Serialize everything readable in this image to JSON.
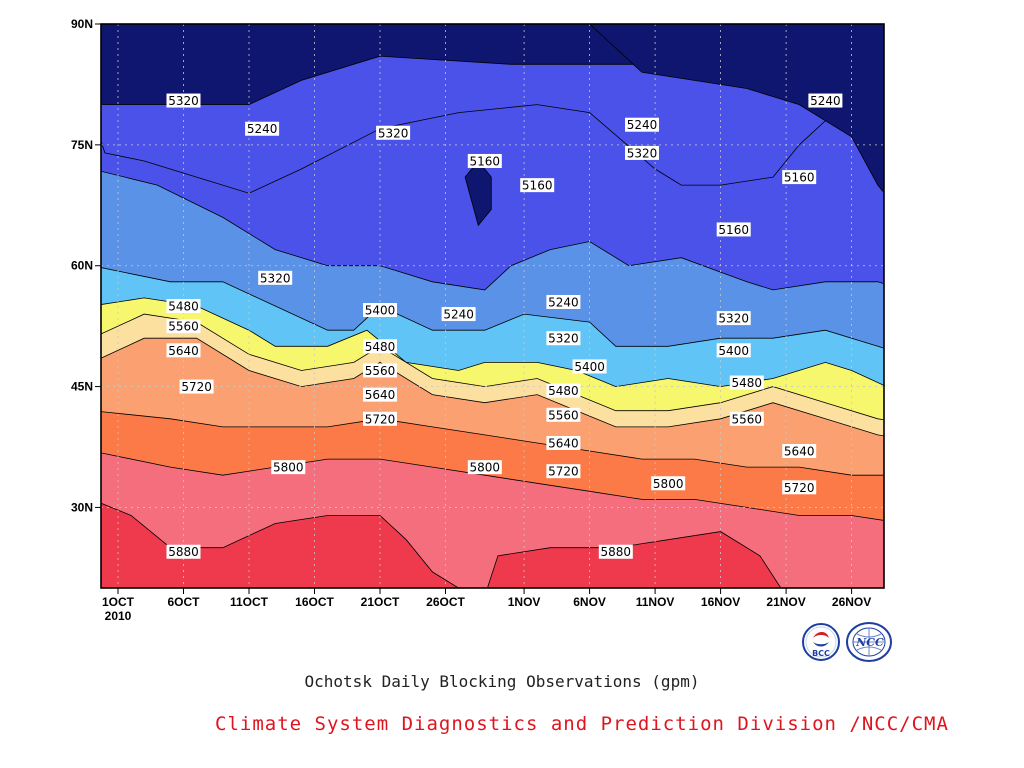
{
  "chart_data": {
    "type": "heatmap",
    "title": "Ochotsk Daily Blocking Observations (gpm)",
    "xlabel": "",
    "ylabel": "",
    "x_ticks": [
      "1OCT",
      "6OCT",
      "11OCT",
      "16OCT",
      "21OCT",
      "26OCT",
      "1NOV",
      "6NOV",
      "11NOV",
      "16NOV",
      "21NOV",
      "26NOV"
    ],
    "x_year_label": "2010",
    "x_range": [
      "2010-10-01",
      "2010-11-29"
    ],
    "y_ticks": [
      "30N",
      "45N",
      "60N",
      "75N",
      "90N"
    ],
    "y_range": [
      20,
      90
    ],
    "grid": true,
    "contour_levels": [
      5160,
      5240,
      5320,
      5400,
      5480,
      5560,
      5640,
      5720,
      5800,
      5880
    ],
    "level_colors": [
      "#0f1670",
      "#1a1de0",
      "#4a52ea",
      "#5a92e8",
      "#60c4f7",
      "#f7f76e",
      "#fbe0a0",
      "#fba070",
      "#fb7a48",
      "#f56e7e",
      "#ef3a4e"
    ],
    "contour_labels": [
      {
        "date": "2010-10-06",
        "lat": 80.5,
        "value": 5320
      },
      {
        "date": "2010-10-12",
        "lat": 77,
        "value": 5240
      },
      {
        "date": "2010-10-22",
        "lat": 76.5,
        "value": 5320
      },
      {
        "date": "2010-10-29",
        "lat": 73,
        "value": 5160
      },
      {
        "date": "2010-11-02",
        "lat": 70,
        "value": 5160
      },
      {
        "date": "2010-11-10",
        "lat": 77.5,
        "value": 5240
      },
      {
        "date": "2010-11-10",
        "lat": 74,
        "value": 5320
      },
      {
        "date": "2010-11-24",
        "lat": 80.5,
        "value": 5240
      },
      {
        "date": "2010-11-22",
        "lat": 71,
        "value": 5160
      },
      {
        "date": "2010-11-17",
        "lat": 64.5,
        "value": 5160
      },
      {
        "date": "2010-10-13",
        "lat": 58.5,
        "value": 5320
      },
      {
        "date": "2010-10-06",
        "lat": 55,
        "value": 5480
      },
      {
        "date": "2010-10-06",
        "lat": 52.5,
        "value": 5560
      },
      {
        "date": "2010-10-06",
        "lat": 49.5,
        "value": 5640
      },
      {
        "date": "2010-10-07",
        "lat": 45,
        "value": 5720
      },
      {
        "date": "2010-10-21",
        "lat": 54.5,
        "value": 5400
      },
      {
        "date": "2010-10-21",
        "lat": 50,
        "value": 5480
      },
      {
        "date": "2010-10-21",
        "lat": 47,
        "value": 5560
      },
      {
        "date": "2010-10-21",
        "lat": 44,
        "value": 5640
      },
      {
        "date": "2010-10-21",
        "lat": 41,
        "value": 5720
      },
      {
        "date": "2010-10-27",
        "lat": 54,
        "value": 5240
      },
      {
        "date": "2010-11-04",
        "lat": 55.5,
        "value": 5240
      },
      {
        "date": "2010-11-04",
        "lat": 51,
        "value": 5320
      },
      {
        "date": "2010-11-06",
        "lat": 47.5,
        "value": 5400
      },
      {
        "date": "2010-11-04",
        "lat": 44.5,
        "value": 5480
      },
      {
        "date": "2010-11-04",
        "lat": 41.5,
        "value": 5560
      },
      {
        "date": "2010-11-04",
        "lat": 38,
        "value": 5640
      },
      {
        "date": "2010-11-04",
        "lat": 34.5,
        "value": 5720
      },
      {
        "date": "2010-11-17",
        "lat": 53.5,
        "value": 5320
      },
      {
        "date": "2010-11-17",
        "lat": 49.5,
        "value": 5400
      },
      {
        "date": "2010-11-18",
        "lat": 45.5,
        "value": 5480
      },
      {
        "date": "2010-11-18",
        "lat": 41,
        "value": 5560
      },
      {
        "date": "2010-11-22",
        "lat": 37,
        "value": 5640
      },
      {
        "date": "2010-11-22",
        "lat": 32.5,
        "value": 5720
      },
      {
        "date": "2010-10-14",
        "lat": 35,
        "value": 5800
      },
      {
        "date": "2010-10-29",
        "lat": 35,
        "value": 5800
      },
      {
        "date": "2010-11-12",
        "lat": 33,
        "value": 5800
      },
      {
        "date": "2010-10-06",
        "lat": 24.5,
        "value": 5880
      },
      {
        "date": "2010-11-08",
        "lat": 24.5,
        "value": 5880
      }
    ]
  },
  "footer": "Climate System Diagnostics and Prediction Division /NCC/CMA",
  "logos": [
    {
      "name": "bcc-logo",
      "text": "BCC",
      "color": "#1f3fa0"
    },
    {
      "name": "ncc-logo",
      "text": "NCC",
      "color": "#1f3fa0"
    }
  ]
}
